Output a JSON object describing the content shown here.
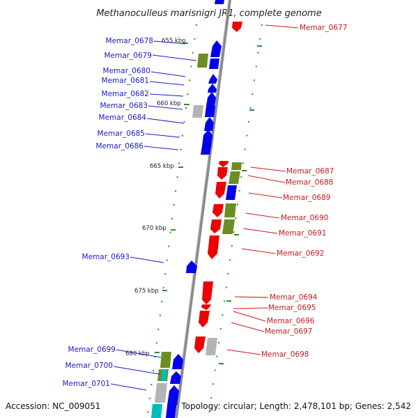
{
  "title": "Methanoculleus marisnigri JR1, complete genome",
  "footer": {
    "accession": "Accession: NC_009051",
    "summary": "Topology: circular; Length: 2,478,101 bp; Genes: 2,542"
  },
  "colors": {
    "forward_gene": "#0000ee",
    "reverse_gene": "#ee0000",
    "feature_olive": "#6b8e23",
    "feature_gray": "#b4b4b4",
    "feature_cyan": "#00bcbc",
    "backbone": "#8c8c8c",
    "tick": "#2e8b2e"
  },
  "kbp_ticks": [
    "655 kbp",
    "660 kbp",
    "665 kbp",
    "670 kbp",
    "675 kbp",
    "680 kbp"
  ],
  "left_labels": [
    "Memar_0678",
    "Memar_0679",
    "Memar_0680",
    "Memar_0681",
    "Memar_0682",
    "Memar_0683",
    "Memar_0684",
    "Memar_0685",
    "Memar_0686",
    "Memar_0693",
    "Memar_0699",
    "Memar_0700",
    "Memar_0701"
  ],
  "right_labels": [
    "Memar_0677",
    "Memar_0687",
    "Memar_0688",
    "Memar_0689",
    "Memar_0690",
    "Memar_0691",
    "Memar_0692",
    "Memar_0694",
    "Memar_0695",
    "Memar_0696",
    "Memar_0697",
    "Memar_0698"
  ]
}
